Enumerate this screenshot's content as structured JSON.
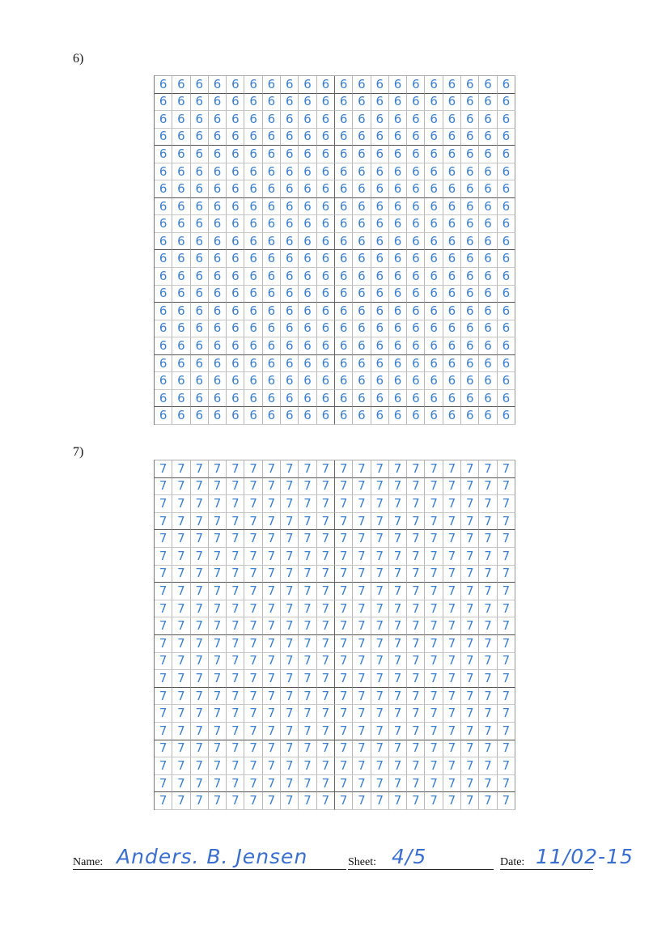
{
  "sections": [
    {
      "label": "6)",
      "digit": "6",
      "rows": 20,
      "cols": 20
    },
    {
      "label": "7)",
      "digit": "7",
      "rows": 20,
      "cols": 20
    }
  ],
  "footer": {
    "name_label": "Name:",
    "name_value": "Anders. B. Jensen",
    "sheet_label": "Sheet:",
    "sheet_value": "4/5",
    "date_label": "Date:",
    "date_value": "11/02-15"
  },
  "colors": {
    "ink": "#3a7fd0",
    "grid_line": "#b8b8b8",
    "grid_dark": "#555555",
    "print": "#111111"
  }
}
